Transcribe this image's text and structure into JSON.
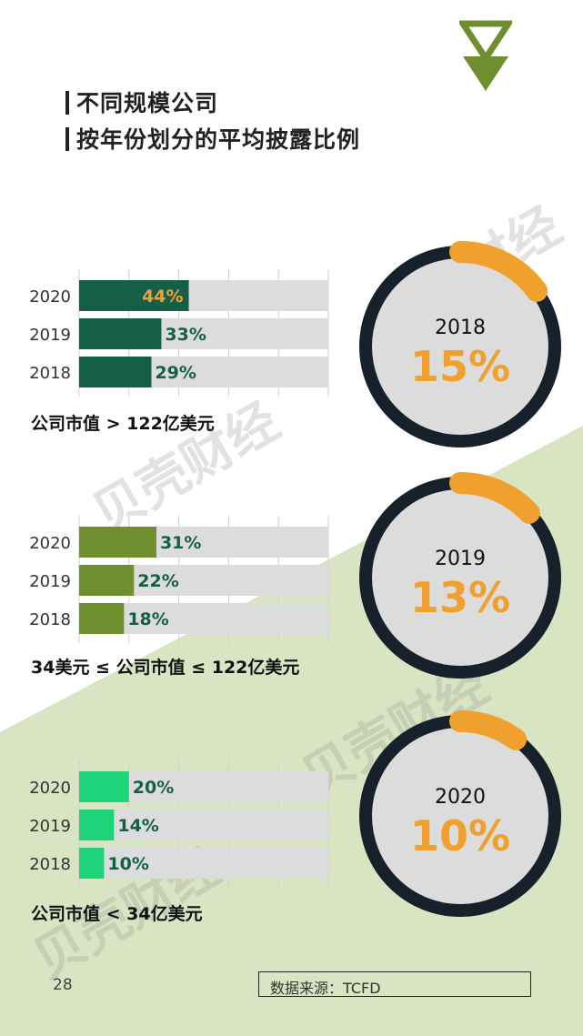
{
  "title_lines": [
    "不同规模公司",
    "按年份划分的平均披露比例"
  ],
  "colors": {
    "large": "#155f48",
    "mid": "#6f8f2f",
    "small": "#1fd37a",
    "track": "#dcdcdc",
    "accent": "#f0a12d",
    "ring_dark": "#17212b",
    "green_bg": "#d8e4c2"
  },
  "chart_data": [
    {
      "type": "bar",
      "caption": "公司市值 > 122亿美元",
      "categories": [
        "2020",
        "2019",
        "2018"
      ],
      "values": [
        44,
        33,
        29
      ],
      "labels": [
        "44%",
        "33%",
        "29%"
      ],
      "xlim": [
        0,
        100
      ]
    },
    {
      "type": "bar",
      "caption": "34美元 ≤ 公司市值 ≤ 122亿美元",
      "categories": [
        "2020",
        "2019",
        "2018"
      ],
      "values": [
        31,
        22,
        18
      ],
      "labels": [
        "31%",
        "22%",
        "18%"
      ],
      "xlim": [
        0,
        100
      ]
    },
    {
      "type": "bar",
      "caption": "公司市值 < 34亿美元",
      "categories": [
        "2020",
        "2019",
        "2018"
      ],
      "values": [
        20,
        14,
        10
      ],
      "labels": [
        "20%",
        "14%",
        "10%"
      ],
      "xlim": [
        0,
        100
      ]
    },
    {
      "type": "pie",
      "year": "2018",
      "value": 15,
      "label": "15%"
    },
    {
      "type": "pie",
      "year": "2019",
      "value": 13,
      "label": "13%"
    },
    {
      "type": "pie",
      "year": "2020",
      "value": 10,
      "label": "10%"
    }
  ],
  "watermark": "贝壳财经",
  "page_number": "28",
  "source": "数据来源：TCFD"
}
